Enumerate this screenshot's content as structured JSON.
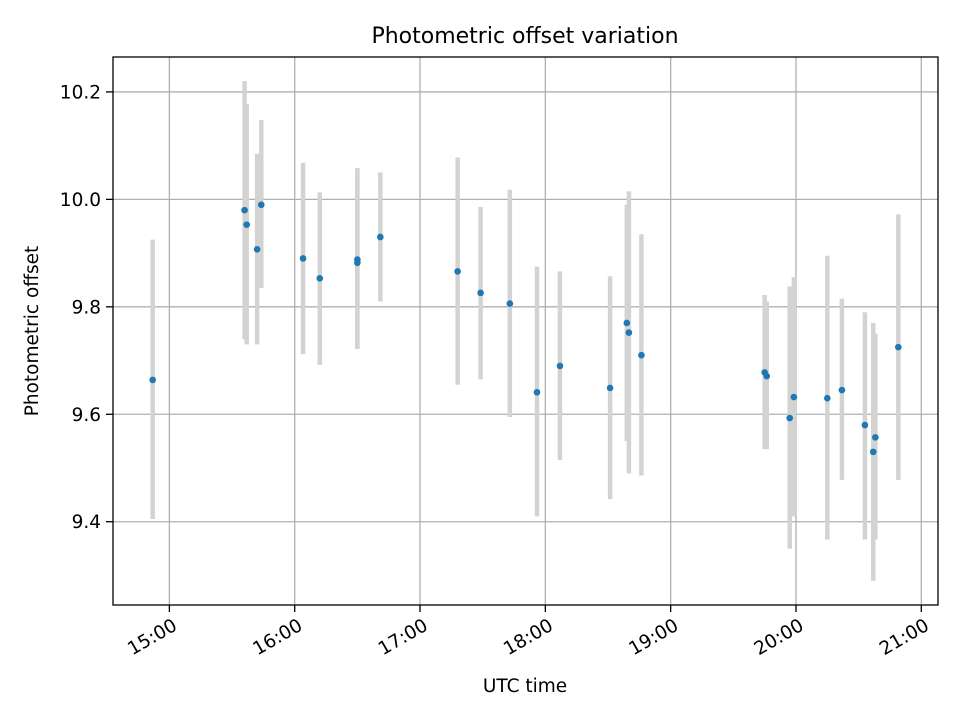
{
  "chart_data": {
    "type": "scatter",
    "title": "Photometric offset variation",
    "xlabel": "UTC time",
    "ylabel": "Photometric offset",
    "x_tick_labels": [
      "15:00",
      "16:00",
      "17:00",
      "18:00",
      "19:00",
      "20:00",
      "21:00"
    ],
    "y_tick_labels": [
      "9.4",
      "9.6",
      "9.8",
      "10.0",
      "10.2"
    ],
    "y_ticks": [
      9.4,
      9.6,
      9.8,
      10.0,
      10.2
    ],
    "xlim": [
      "14:33",
      "21:08"
    ],
    "ylim": [
      9.245,
      10.265
    ],
    "grid": true,
    "marker_color": "#1f77b4",
    "errorbar_color": "#d3d3d3",
    "points": [
      {
        "x": "14:52",
        "y": 9.664,
        "ylow": 9.405,
        "yhigh": 9.925
      },
      {
        "x": "15:36",
        "y": 9.98,
        "ylow": 9.74,
        "yhigh": 10.22
      },
      {
        "x": "15:37",
        "y": 9.953,
        "ylow": 9.73,
        "yhigh": 10.178
      },
      {
        "x": "15:42",
        "y": 9.907,
        "ylow": 9.73,
        "yhigh": 10.085
      },
      {
        "x": "15:44",
        "y": 9.99,
        "ylow": 9.835,
        "yhigh": 10.148
      },
      {
        "x": "16:04",
        "y": 9.89,
        "ylow": 9.712,
        "yhigh": 10.068
      },
      {
        "x": "16:12",
        "y": 9.853,
        "ylow": 9.692,
        "yhigh": 10.013
      },
      {
        "x": "16:30",
        "y": 9.882,
        "ylow": 9.722,
        "yhigh": 10.058
      },
      {
        "x": "16:30",
        "y": 9.888,
        "ylow": 9.722,
        "yhigh": 10.058
      },
      {
        "x": "16:41",
        "y": 9.93,
        "ylow": 9.81,
        "yhigh": 10.05
      },
      {
        "x": "17:18",
        "y": 9.866,
        "ylow": 9.655,
        "yhigh": 10.078
      },
      {
        "x": "17:29",
        "y": 9.826,
        "ylow": 9.665,
        "yhigh": 9.986
      },
      {
        "x": "17:43",
        "y": 9.806,
        "ylow": 9.595,
        "yhigh": 10.018
      },
      {
        "x": "17:56",
        "y": 9.641,
        "ylow": 9.41,
        "yhigh": 9.875
      },
      {
        "x": "18:07",
        "y": 9.69,
        "ylow": 9.515,
        "yhigh": 9.866
      },
      {
        "x": "18:31",
        "y": 9.649,
        "ylow": 9.442,
        "yhigh": 9.857
      },
      {
        "x": "18:39",
        "y": 9.77,
        "ylow": 9.55,
        "yhigh": 9.99
      },
      {
        "x": "18:40",
        "y": 9.752,
        "ylow": 9.49,
        "yhigh": 10.015
      },
      {
        "x": "18:46",
        "y": 9.71,
        "ylow": 9.486,
        "yhigh": 9.935
      },
      {
        "x": "19:45",
        "y": 9.678,
        "ylow": 9.535,
        "yhigh": 9.822
      },
      {
        "x": "19:46",
        "y": 9.671,
        "ylow": 9.535,
        "yhigh": 9.81
      },
      {
        "x": "19:57",
        "y": 9.593,
        "ylow": 9.35,
        "yhigh": 9.838
      },
      {
        "x": "19:59",
        "y": 9.632,
        "ylow": 9.41,
        "yhigh": 9.855
      },
      {
        "x": "20:15",
        "y": 9.63,
        "ylow": 9.367,
        "yhigh": 9.895
      },
      {
        "x": "20:22",
        "y": 9.645,
        "ylow": 9.478,
        "yhigh": 9.815
      },
      {
        "x": "20:33",
        "y": 9.58,
        "ylow": 9.367,
        "yhigh": 9.79
      },
      {
        "x": "20:37",
        "y": 9.53,
        "ylow": 9.29,
        "yhigh": 9.77
      },
      {
        "x": "20:38",
        "y": 9.557,
        "ylow": 9.367,
        "yhigh": 9.75
      },
      {
        "x": "20:49",
        "y": 9.725,
        "ylow": 9.478,
        "yhigh": 9.972
      }
    ]
  }
}
